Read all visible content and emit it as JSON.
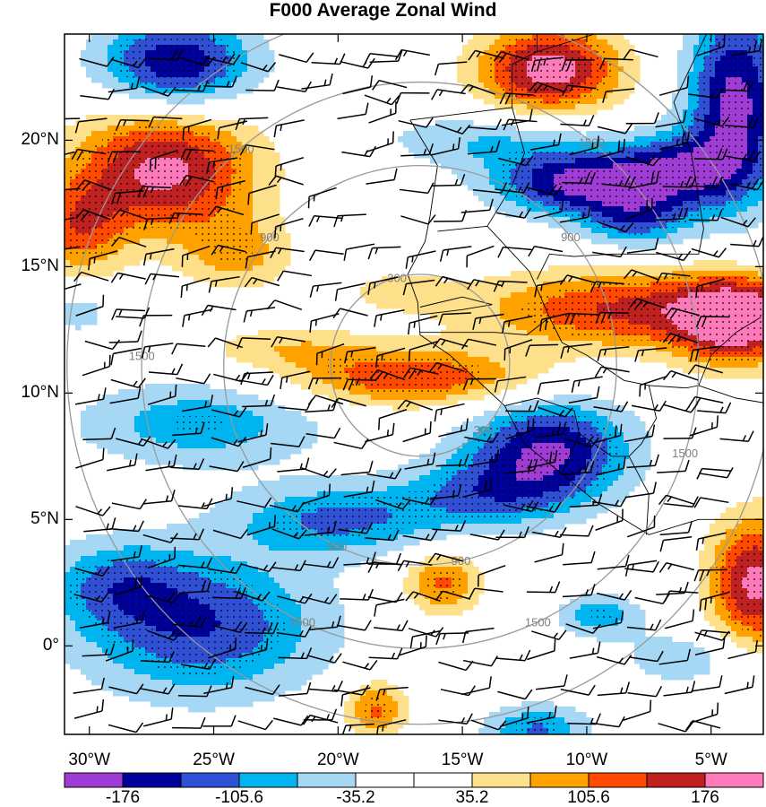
{
  "title": "F000 Average Zonal Wind",
  "map": {
    "lon_range": [
      -31,
      -2.9
    ],
    "lat_range": [
      -3.5,
      24.2
    ],
    "lat_ticks": [
      {
        "value": 20,
        "label": "20°N"
      },
      {
        "value": 15,
        "label": "15°N"
      },
      {
        "value": 10,
        "label": "10°N"
      },
      {
        "value": 5,
        "label": "5°N"
      },
      {
        "value": 0,
        "label": "0°"
      }
    ],
    "lon_ticks": [
      {
        "value": -30,
        "label": "30°W"
      },
      {
        "value": -25,
        "label": "25°W"
      },
      {
        "value": -20,
        "label": "20°W"
      },
      {
        "value": -15,
        "label": "15°W"
      },
      {
        "value": -10,
        "label": "10°W"
      },
      {
        "value": -5,
        "label": "5°W"
      }
    ],
    "range_rings": {
      "center": [
        -16.7,
        11.1
      ],
      "rings": [
        {
          "radius_deg": 3.6,
          "label": "300",
          "label_angle": 105
        },
        {
          "radius_deg": 3.6,
          "label": "300",
          "label_angle": -45
        },
        {
          "radius_deg": 7.9,
          "label": "900",
          "label_angle": 40
        },
        {
          "radius_deg": 7.9,
          "label": "900",
          "label_angle": 140
        },
        {
          "radius_deg": 7.9,
          "label": "900",
          "label_angle": -115
        },
        {
          "radius_deg": 7.9,
          "label": "900",
          "label_angle": -78
        },
        {
          "radius_deg": 11.2,
          "label": "1500",
          "label_angle": 52
        },
        {
          "radius_deg": 11.2,
          "label": "1500",
          "label_angle": 130
        },
        {
          "radius_deg": 11.2,
          "label": "1500",
          "label_angle": 178
        },
        {
          "radius_deg": 11.2,
          "label": "1500",
          "label_angle": -115
        },
        {
          "radius_deg": 11.2,
          "label": "1500",
          "label_angle": -65
        },
        {
          "radius_deg": 11.2,
          "label": "1500",
          "label_angle": -18
        },
        {
          "radius_deg": 14.2,
          "label": "",
          "label_angle": 0
        }
      ]
    },
    "wind_field": {
      "centers": [
        {
          "lon": -26.5,
          "lat": 23.0,
          "value": -180,
          "sx": 2.2,
          "sy": 1.3
        },
        {
          "lon": -11.5,
          "lat": 22.8,
          "value": 200,
          "sx": 2.0,
          "sy": 1.2
        },
        {
          "lon": -27.0,
          "lat": 18.8,
          "value": 190,
          "sx": 2.6,
          "sy": 1.8
        },
        {
          "lon": -30.5,
          "lat": 16.5,
          "value": 110,
          "sx": 1.3,
          "sy": 1.3
        },
        {
          "lon": -24.0,
          "lat": 15.5,
          "value": 80,
          "sx": 1.5,
          "sy": 1.0
        },
        {
          "lon": -4.0,
          "lat": 21.5,
          "value": -190,
          "sx": 1.4,
          "sy": 2.8
        },
        {
          "lon": -14.0,
          "lat": 20.0,
          "value": -70,
          "sx": 3.0,
          "sy": 0.8
        },
        {
          "lon": -10.5,
          "lat": 18.3,
          "value": -180,
          "sx": 2.3,
          "sy": 0.9
        },
        {
          "lon": -6.5,
          "lat": 18.8,
          "value": -150,
          "sx": 1.8,
          "sy": 1.0
        },
        {
          "lon": -8.0,
          "lat": 16.8,
          "value": -110,
          "sx": 1.5,
          "sy": 0.8
        },
        {
          "lon": -8.0,
          "lat": 13.3,
          "value": 150,
          "sx": 4.5,
          "sy": 1.1
        },
        {
          "lon": -4.0,
          "lat": 12.8,
          "value": 180,
          "sx": 1.6,
          "sy": 1.2
        },
        {
          "lon": -17.0,
          "lat": 10.6,
          "value": 140,
          "sx": 3.5,
          "sy": 0.8
        },
        {
          "lon": -22.0,
          "lat": 11.8,
          "value": 60,
          "sx": 2.5,
          "sy": 0.6
        },
        {
          "lon": -17.5,
          "lat": 14.0,
          "value": 55,
          "sx": 1.5,
          "sy": 0.5
        },
        {
          "lon": -30.5,
          "lat": 13.2,
          "value": -60,
          "sx": 1.0,
          "sy": 0.6
        },
        {
          "lon": -25.5,
          "lat": 8.8,
          "value": -95,
          "sx": 3.5,
          "sy": 1.2
        },
        {
          "lon": -11.5,
          "lat": 7.8,
          "value": -175,
          "sx": 2.3,
          "sy": 1.4
        },
        {
          "lon": -20.0,
          "lat": 5.0,
          "value": -110,
          "sx": 3.0,
          "sy": 1.0
        },
        {
          "lon": -14.0,
          "lat": 6.0,
          "value": -95,
          "sx": 2.5,
          "sy": 1.0
        },
        {
          "lon": -25.5,
          "lat": 0.8,
          "value": -140,
          "sx": 3.5,
          "sy": 2.0
        },
        {
          "lon": -29.0,
          "lat": 2.5,
          "value": -80,
          "sx": 2.0,
          "sy": 1.2
        },
        {
          "lon": -15.8,
          "lat": 2.5,
          "value": 115,
          "sx": 1.1,
          "sy": 0.9
        },
        {
          "lon": -3.2,
          "lat": 2.5,
          "value": 190,
          "sx": 1.3,
          "sy": 1.8
        },
        {
          "lon": -9.5,
          "lat": 1.2,
          "value": -95,
          "sx": 1.2,
          "sy": 0.6
        },
        {
          "lon": -18.5,
          "lat": -2.5,
          "value": 115,
          "sx": 0.9,
          "sy": 0.8
        },
        {
          "lon": -12.0,
          "lat": -3.3,
          "value": -110,
          "sx": 1.5,
          "sy": 0.7
        },
        {
          "lon": -6.0,
          "lat": -0.5,
          "value": -60,
          "sx": 2.0,
          "sy": 0.8
        }
      ]
    }
  },
  "colorbar": {
    "colors": [
      "#a03cd6",
      "#00009a",
      "#3050d6",
      "#00b4f0",
      "#a6d8f6",
      "#ffffff",
      "#ffffff",
      "#ffe08a",
      "#ffa200",
      "#ff4a00",
      "#c02020",
      "#ff7ab8"
    ],
    "levels": [
      -211.2,
      -176,
      -140.8,
      -105.6,
      -70.4,
      -35.2,
      0,
      35.2,
      70.4,
      105.6,
      140.8,
      176,
      211.2
    ],
    "labels": [
      {
        "boundary": 1,
        "text": "-176"
      },
      {
        "boundary": 3,
        "text": "-105.6"
      },
      {
        "boundary": 5,
        "text": "-35.2"
      },
      {
        "boundary": 7,
        "text": "35.2"
      },
      {
        "boundary": 9,
        "text": "105.6"
      },
      {
        "boundary": 11,
        "text": "176"
      }
    ]
  },
  "colors": {
    "ring": "#999999",
    "coast": "#000000",
    "barb": "#000000",
    "contour": "#000000"
  }
}
